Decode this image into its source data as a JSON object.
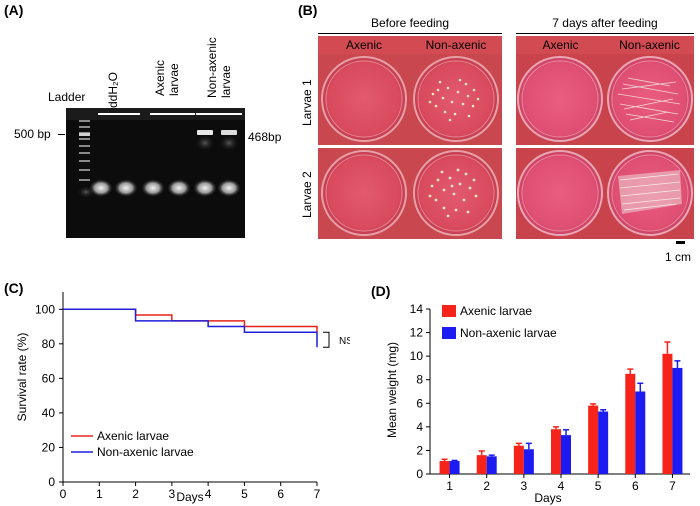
{
  "panel_a": {
    "label": "(A)",
    "ladder_label": "Ladder",
    "lanes": [
      {
        "label": "ddH₂O"
      },
      {
        "label_lines": [
          "Axenic",
          "larvae"
        ]
      },
      {
        "label_lines": [
          "Non-axenic",
          "larvae"
        ]
      }
    ],
    "marker_label": "500 bp",
    "band_label": "468bp"
  },
  "panel_b": {
    "label": "(B)",
    "groups": [
      {
        "title": "Before feeding",
        "columns": [
          "Axenic",
          "Non-axenic"
        ]
      },
      {
        "title": "7 days after feeding",
        "columns": [
          "Axenic",
          "Non-axenic"
        ]
      }
    ],
    "rows": [
      "Larvae 1",
      "Larvae 2"
    ],
    "scale_label": "1 cm"
  },
  "panel_c": {
    "label": "(C)",
    "chart_data": {
      "type": "line",
      "title": "",
      "xlabel": "Days",
      "ylabel": "Survival rate (%)",
      "xlim": [
        0,
        7
      ],
      "ylim": [
        0,
        110
      ],
      "xticks": [
        0,
        1,
        2,
        3,
        4,
        5,
        6,
        7
      ],
      "yticks": [
        0,
        20,
        40,
        60,
        80,
        100
      ],
      "step": true,
      "series": [
        {
          "name": "Axenic larvae",
          "color": "#e8231c",
          "x": [
            0,
            2,
            3,
            5,
            7
          ],
          "y": [
            100,
            96.7,
            93.3,
            90,
            86.7
          ]
        },
        {
          "name": "Non-axenic larvae",
          "color": "#1f1fdd",
          "x": [
            0,
            2,
            4,
            5,
            7
          ],
          "y": [
            100,
            93.3,
            90,
            86.7,
            78
          ]
        }
      ],
      "annotation": "NS",
      "legend_position": "bottom-left"
    }
  },
  "panel_d": {
    "label": "(D)",
    "chart_data": {
      "type": "bar",
      "title": "",
      "xlabel": "Days",
      "ylabel": "Mean weight (mg)",
      "ylim": [
        0,
        14
      ],
      "yticks": [
        0,
        2,
        4,
        6,
        8,
        10,
        12,
        14
      ],
      "categories": [
        "1",
        "2",
        "3",
        "4",
        "5",
        "6",
        "7"
      ],
      "series": [
        {
          "name": "Axenic larvae",
          "color": "#f5231a",
          "values": [
            1.1,
            1.6,
            2.4,
            3.8,
            5.8,
            8.5,
            10.2
          ],
          "errors": [
            0.15,
            0.35,
            0.2,
            0.2,
            0.15,
            0.4,
            1.0
          ]
        },
        {
          "name": "Non-axenic larvae",
          "color": "#1b1bf2",
          "values": [
            1.1,
            1.5,
            2.1,
            3.3,
            5.3,
            7.0,
            9.0
          ],
          "errors": [
            0.05,
            0.1,
            0.5,
            0.45,
            0.15,
            0.7,
            0.6
          ]
        }
      ],
      "legend_position": "top-left"
    }
  }
}
